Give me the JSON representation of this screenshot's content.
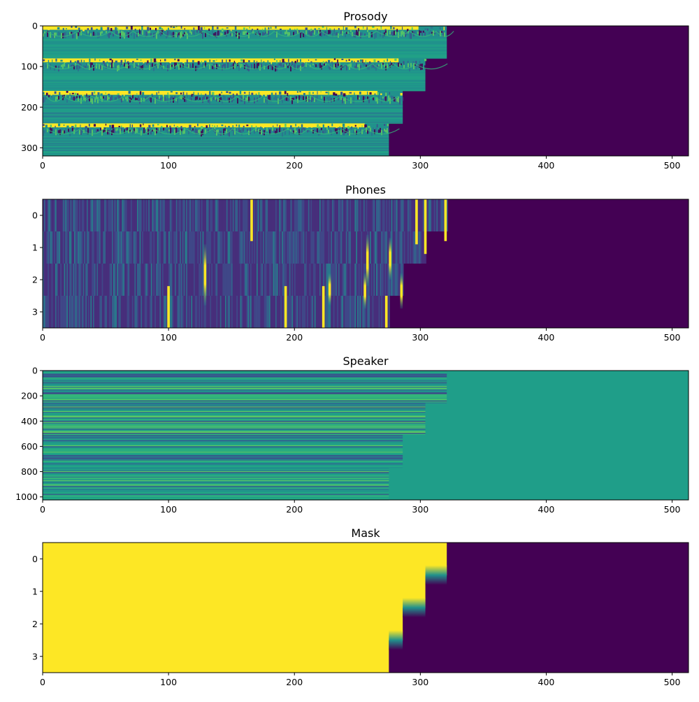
{
  "colors": {
    "low": "#440154",
    "mid": "#21918c",
    "teal": "#1f9e89",
    "high": "#fde725",
    "dark_blue": "#3b528b",
    "green": "#5ec962"
  },
  "chart_data": [
    {
      "type": "heatmap",
      "title": "Prosody",
      "xlim": [
        0,
        513
      ],
      "ylim": [
        320,
        0
      ],
      "xticks": [
        0,
        100,
        200,
        300,
        400,
        500
      ],
      "yticks": [
        0,
        100,
        200,
        300
      ],
      "segments": [
        {
          "row_start": 0,
          "row_end": 80,
          "valid_length": 321
        },
        {
          "row_start": 80,
          "row_end": 160,
          "valid_length": 304
        },
        {
          "row_start": 160,
          "row_end": 240,
          "valid_length": 286
        },
        {
          "row_start": 240,
          "row_end": 320,
          "valid_length": 275
        }
      ],
      "fill_value_color": "low"
    },
    {
      "type": "heatmap",
      "title": "Phones",
      "xlim": [
        0,
        513
      ],
      "ylim": [
        3.5,
        -0.5
      ],
      "xticks": [
        0,
        100,
        200,
        300,
        400,
        500
      ],
      "yticks": [
        0,
        1,
        2,
        3
      ],
      "valid_lengths": [
        321,
        304,
        286,
        275
      ],
      "peaks": [
        {
          "x": 166,
          "y_from": -0.5,
          "y_to": 0.8
        },
        {
          "x": 297,
          "y_from": -0.5,
          "y_to": 0.9
        },
        {
          "x": 304,
          "y_from": -0.5,
          "y_to": 1.2
        },
        {
          "x": 320,
          "y_from": -0.5,
          "y_to": 0.8
        },
        {
          "x": 129,
          "y_from": 0.9,
          "y_to": 2.8
        },
        {
          "x": 258,
          "y_from": 0.6,
          "y_to": 2.2
        },
        {
          "x": 276,
          "y_from": 0.7,
          "y_to": 2.0
        },
        {
          "x": 256,
          "y_from": 1.8,
          "y_to": 2.9
        },
        {
          "x": 228,
          "y_from": 1.8,
          "y_to": 2.8
        },
        {
          "x": 285,
          "y_from": 1.8,
          "y_to": 2.9
        },
        {
          "x": 100,
          "y_from": 2.2,
          "y_to": 3.5
        },
        {
          "x": 193,
          "y_from": 2.2,
          "y_to": 3.5
        },
        {
          "x": 223,
          "y_from": 2.2,
          "y_to": 3.5
        },
        {
          "x": 273,
          "y_from": 2.5,
          "y_to": 3.5
        }
      ]
    },
    {
      "type": "heatmap",
      "title": "Speaker",
      "xlim": [
        0,
        513
      ],
      "ylim": [
        1024,
        0
      ],
      "xticks": [
        0,
        100,
        200,
        300,
        400,
        500
      ],
      "yticks": [
        0,
        200,
        400,
        600,
        800,
        1000
      ],
      "segments": [
        {
          "row_start": 0,
          "row_end": 256,
          "valid_length": 321
        },
        {
          "row_start": 256,
          "row_end": 512,
          "valid_length": 304
        },
        {
          "row_start": 512,
          "row_end": 768,
          "valid_length": 286
        },
        {
          "row_start": 768,
          "row_end": 1024,
          "valid_length": 275
        }
      ],
      "fill_value_color": "teal"
    },
    {
      "type": "heatmap",
      "title": "Mask",
      "xlim": [
        0,
        513
      ],
      "ylim": [
        3.5,
        -0.5
      ],
      "xticks": [
        0,
        100,
        200,
        300,
        400,
        500
      ],
      "yticks": [
        0,
        1,
        2,
        3
      ],
      "valid_lengths": [
        321,
        304,
        286,
        275
      ],
      "valid_color": "high",
      "invalid_color": "low"
    }
  ]
}
